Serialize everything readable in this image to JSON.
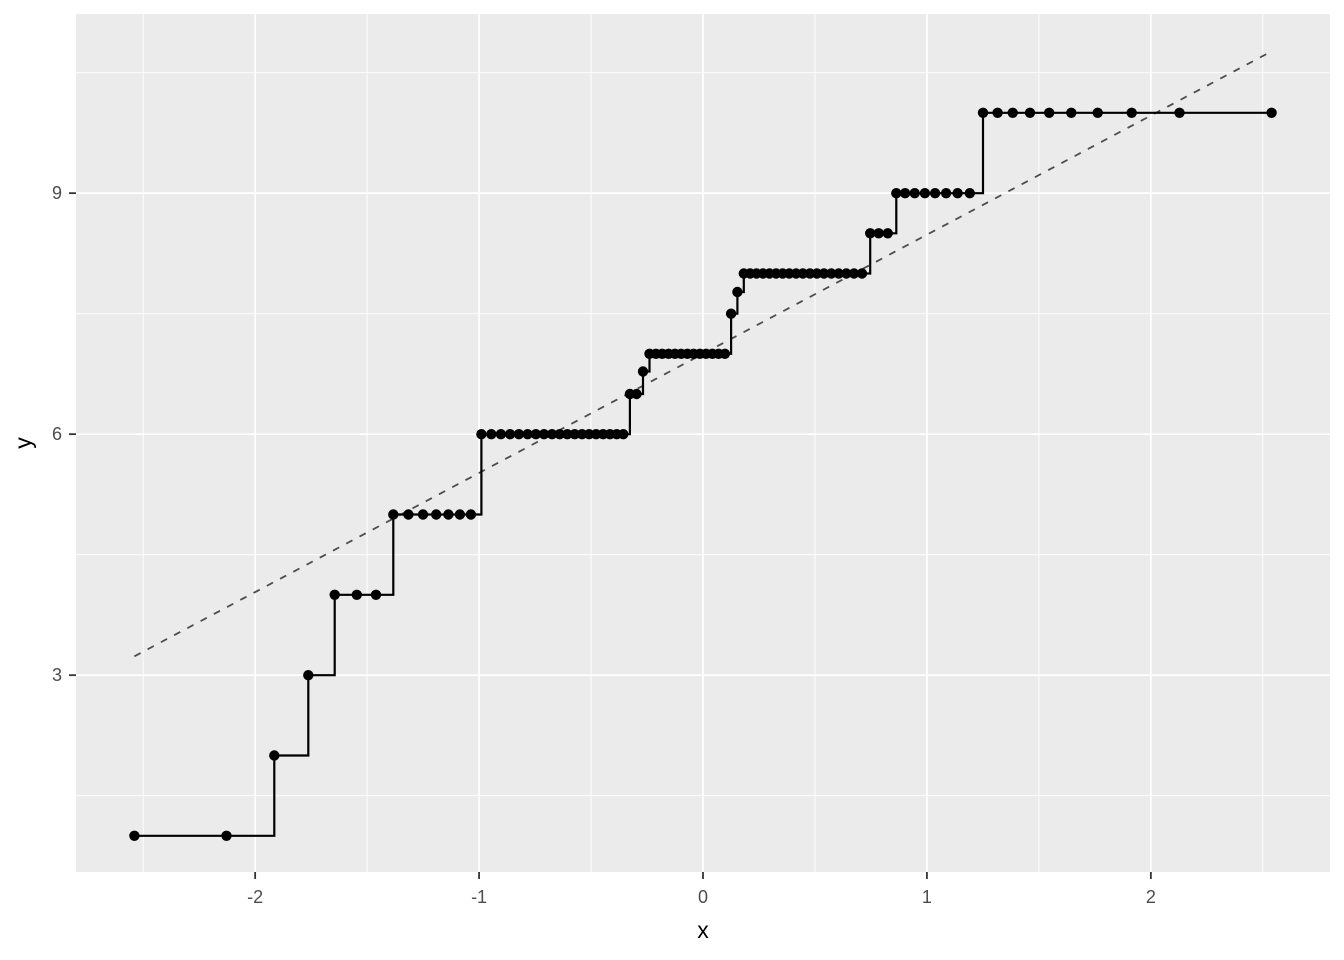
{
  "figure": {
    "background_color": "#FFFFFF"
  },
  "chart_data": {
    "type": "line",
    "subtype": "step-with-points",
    "title": "",
    "xlabel": "x",
    "ylabel": "y",
    "xlim": [
      -2.8,
      2.8
    ],
    "ylim": [
      0.55,
      11.23
    ],
    "grid": "on",
    "legend_position": "none",
    "x_ticks": [
      -2,
      -1,
      0,
      1,
      2
    ],
    "x_tick_labels": [
      "-2",
      "-1",
      "0",
      "1",
      "2"
    ],
    "y_ticks": [
      3,
      6,
      9
    ],
    "y_tick_labels": [
      "3",
      "6",
      "9"
    ],
    "x_minor_gridlines": [
      -2.5,
      -1.5,
      -0.5,
      0.5,
      1.5,
      2.5
    ],
    "y_minor_gridlines": [
      1.5,
      4.5,
      7.5,
      10.5
    ],
    "colors": {
      "panel_background": "#EBEBEB",
      "gridline": "#FFFFFF",
      "step_line": "#000000",
      "point": "#000000",
      "reference_line": "#4D4D4D",
      "tick_label": "#4D4D4D",
      "tick_mark": "#333333",
      "axis_title": "#000000"
    },
    "series": [
      {
        "name": "empirical-step-quantiles",
        "geom": "step+point",
        "step_direction": "hv",
        "x": [
          -2.5393,
          -2.128,
          -1.9145,
          -1.7624,
          -1.6449,
          -1.5461,
          -1.4601,
          -1.383,
          -1.3157,
          -1.2504,
          -1.1916,
          -1.137,
          -1.0854,
          -1.0364,
          -0.9896,
          -0.9452,
          -0.9026,
          -0.8616,
          -0.822,
          -0.7835,
          -0.7462,
          -0.71,
          -0.6745,
          -0.64,
          -0.6061,
          -0.5729,
          -0.5404,
          -0.5085,
          -0.4772,
          -0.4461,
          -0.4158,
          -0.3853,
          -0.3558,
          -0.3263,
          -0.2971,
          -0.268,
          -0.2391,
          -0.2104,
          -0.1821,
          -0.1538,
          -0.1257,
          -0.0976,
          -0.0697,
          -0.0418,
          -0.0139,
          0.0139,
          0.0418,
          0.0697,
          0.0976,
          0.1257,
          0.1538,
          0.1821,
          0.2104,
          0.2391,
          0.268,
          0.2971,
          0.3263,
          0.3558,
          0.3853,
          0.4158,
          0.4461,
          0.4772,
          0.5085,
          0.5404,
          0.5729,
          0.6061,
          0.64,
          0.6745,
          0.71,
          0.7466,
          0.7847,
          0.8246,
          0.8632,
          0.9027,
          0.9452,
          0.991,
          1.0364,
          1.0854,
          1.137,
          1.1916,
          1.2504,
          1.3157,
          1.383,
          1.4601,
          1.5461,
          1.6449,
          1.7624,
          1.9145,
          2.128,
          2.5393
        ],
        "y": [
          1,
          1,
          2,
          3,
          4,
          4,
          4,
          5,
          5,
          5,
          5,
          5,
          5,
          5,
          6,
          6,
          6,
          6,
          6,
          6,
          6,
          6,
          6,
          6,
          6,
          6,
          6,
          6,
          6,
          6,
          6,
          6,
          6,
          6.5,
          6.5,
          6.78,
          7,
          7,
          7,
          7,
          7,
          7,
          7,
          7,
          7,
          7,
          7,
          7,
          7,
          7.5,
          7.77,
          8,
          8,
          8,
          8,
          8,
          8,
          8,
          8,
          8,
          8,
          8,
          8,
          8,
          8,
          8,
          8,
          8,
          8,
          8.5,
          8.5,
          8.5,
          9,
          9,
          9,
          9,
          9,
          9,
          9,
          9,
          10,
          10,
          10,
          10,
          10,
          10,
          10,
          10,
          10,
          10
        ]
      },
      {
        "name": "dashed-reference-line",
        "geom": "dashed-line",
        "slope": 1.483,
        "intercept": 7,
        "x_start": -2.5393,
        "y_start": 3.2344,
        "x_end": 2.5393,
        "y_end": 10.7656
      }
    ]
  }
}
